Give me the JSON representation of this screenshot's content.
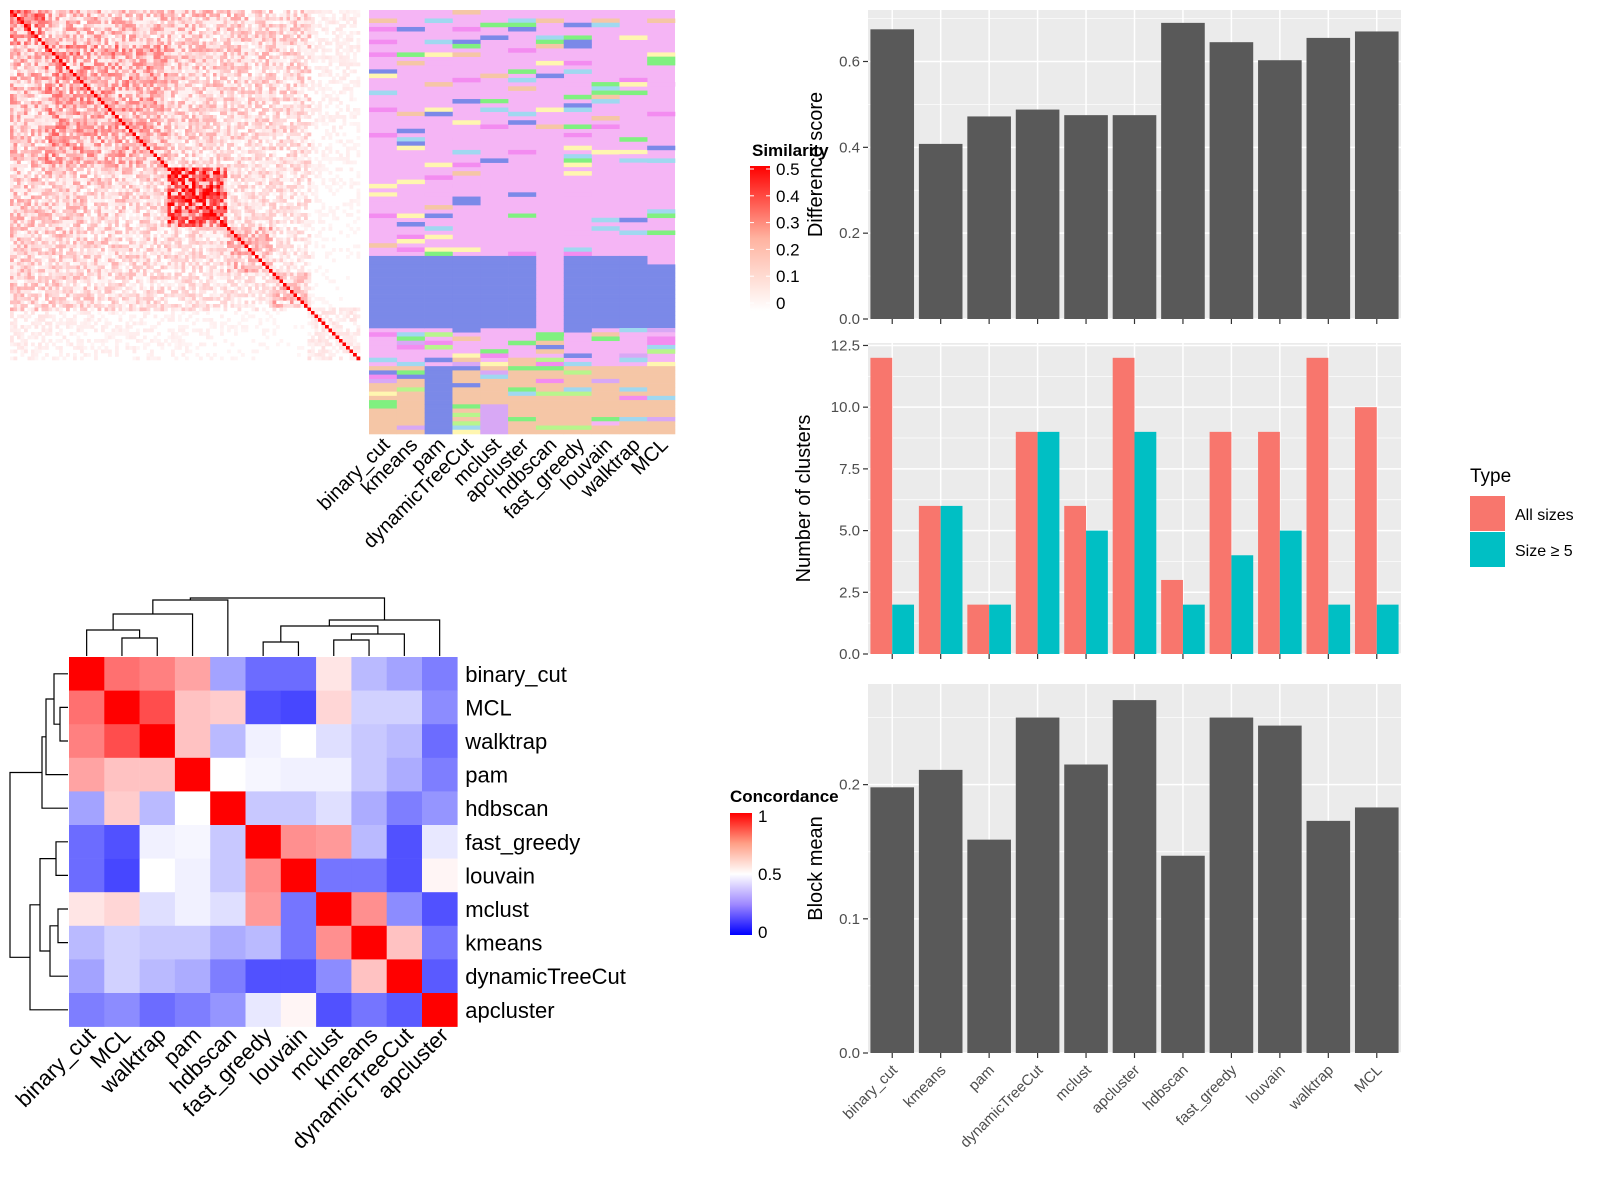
{
  "colors": {
    "bar_gray": "#595959",
    "all_sizes": "#F8766D",
    "size_ge5": "#00BFC4",
    "sim_high": "#FF0000",
    "sim_low": "#FFFFFF",
    "conc_high": "#FF0000",
    "conc_mid": "#FFFFFF",
    "conc_low": "#0000FF"
  },
  "chart_data": [
    {
      "type": "heatmap",
      "legend_title": "Similarity",
      "legend_ticks": [
        "0.5",
        "0.4",
        "0.3",
        "0.2",
        "0.1",
        "0"
      ],
      "legend_placement": "right",
      "range": [
        0,
        0.5
      ]
    },
    {
      "type": "heatmap",
      "columns": [
        "binary_cut",
        "kmeans",
        "pam",
        "dynamicTreeCut",
        "mclust",
        "apcluster",
        "hdbscan",
        "fast_greedy",
        "louvain",
        "walktrap",
        "MCL"
      ]
    },
    {
      "type": "heatmap",
      "rows": [
        "binary_cut",
        "MCL",
        "walktrap",
        "pam",
        "hdbscan",
        "fast_greedy",
        "louvain",
        "mclust",
        "kmeans",
        "dynamicTreeCut",
        "apcluster"
      ],
      "columns": [
        "binary_cut",
        "MCL",
        "walktrap",
        "pam",
        "hdbscan",
        "fast_greedy",
        "louvain",
        "mclust",
        "kmeans",
        "dynamicTreeCut",
        "apcluster"
      ],
      "values": [
        [
          1.0,
          0.78,
          0.75,
          0.68,
          0.3,
          0.18,
          0.18,
          0.55,
          0.35,
          0.3,
          0.22
        ],
        [
          0.78,
          1.0,
          0.85,
          0.62,
          0.6,
          0.12,
          0.1,
          0.58,
          0.4,
          0.4,
          0.25
        ],
        [
          0.75,
          0.85,
          1.0,
          0.62,
          0.35,
          0.47,
          0.5,
          0.43,
          0.38,
          0.35,
          0.18
        ],
        [
          0.68,
          0.62,
          0.62,
          1.0,
          0.5,
          0.48,
          0.47,
          0.47,
          0.38,
          0.32,
          0.22
        ],
        [
          0.3,
          0.6,
          0.35,
          0.5,
          1.0,
          0.38,
          0.38,
          0.43,
          0.32,
          0.22,
          0.27
        ],
        [
          0.18,
          0.12,
          0.47,
          0.48,
          0.38,
          1.0,
          0.72,
          0.7,
          0.35,
          0.12,
          0.45
        ],
        [
          0.18,
          0.1,
          0.5,
          0.47,
          0.38,
          0.72,
          1.0,
          0.2,
          0.2,
          0.12,
          0.52
        ],
        [
          0.55,
          0.58,
          0.43,
          0.47,
          0.43,
          0.7,
          0.2,
          1.0,
          0.72,
          0.25,
          0.12
        ],
        [
          0.35,
          0.4,
          0.38,
          0.38,
          0.32,
          0.35,
          0.2,
          0.72,
          1.0,
          0.62,
          0.2
        ],
        [
          0.3,
          0.4,
          0.35,
          0.32,
          0.22,
          0.12,
          0.12,
          0.25,
          0.62,
          1.0,
          0.14
        ],
        [
          0.22,
          0.25,
          0.18,
          0.22,
          0.27,
          0.45,
          0.52,
          0.12,
          0.2,
          0.14,
          1.0
        ]
      ],
      "legend_title": "Concordance",
      "legend_ticks": [
        "1",
        "0.5",
        "0"
      ],
      "legend_placement": "right",
      "range": [
        0,
        1
      ]
    },
    {
      "type": "bar",
      "categories": [
        "binary_cut",
        "kmeans",
        "pam",
        "dynamicTreeCut",
        "mclust",
        "apcluster",
        "hdbscan",
        "fast_greedy",
        "louvain",
        "walktrap",
        "MCL"
      ],
      "values": [
        0.675,
        0.408,
        0.472,
        0.488,
        0.475,
        0.475,
        0.69,
        0.645,
        0.603,
        0.655,
        0.67
      ],
      "ylabel": "Difference score",
      "ylim": [
        0,
        0.72
      ],
      "yticks": [
        "0.0",
        "0.2",
        "0.4",
        "0.6"
      ],
      "grid": true
    },
    {
      "type": "bar",
      "categories": [
        "binary_cut",
        "kmeans",
        "pam",
        "dynamicTreeCut",
        "mclust",
        "apcluster",
        "hdbscan",
        "fast_greedy",
        "louvain",
        "walktrap",
        "MCL"
      ],
      "series": [
        {
          "name": "All sizes",
          "values": [
            12,
            6,
            2,
            9,
            6,
            12,
            3,
            9,
            9,
            12,
            10
          ]
        },
        {
          "name": "Size ≥ 5",
          "values": [
            2,
            6,
            2,
            9,
            5,
            9,
            2,
            4,
            5,
            2,
            2
          ]
        }
      ],
      "ylabel": "Number of clusters",
      "ylim": [
        0,
        12.6
      ],
      "yticks": [
        "0.0",
        "2.5",
        "5.0",
        "7.5",
        "10.0",
        "12.5"
      ],
      "legend_title": "Type",
      "legend_placement": "right",
      "grid": true
    },
    {
      "type": "bar",
      "categories": [
        "binary_cut",
        "kmeans",
        "pam",
        "dynamicTreeCut",
        "mclust",
        "apcluster",
        "hdbscan",
        "fast_greedy",
        "louvain",
        "walktrap",
        "MCL"
      ],
      "values": [
        0.198,
        0.211,
        0.159,
        0.25,
        0.215,
        0.263,
        0.147,
        0.25,
        0.244,
        0.173,
        0.183
      ],
      "ylabel": "Block mean",
      "ylim": [
        0,
        0.275
      ],
      "yticks": [
        "0.0",
        "0.1",
        "0.2"
      ],
      "grid": true
    }
  ]
}
